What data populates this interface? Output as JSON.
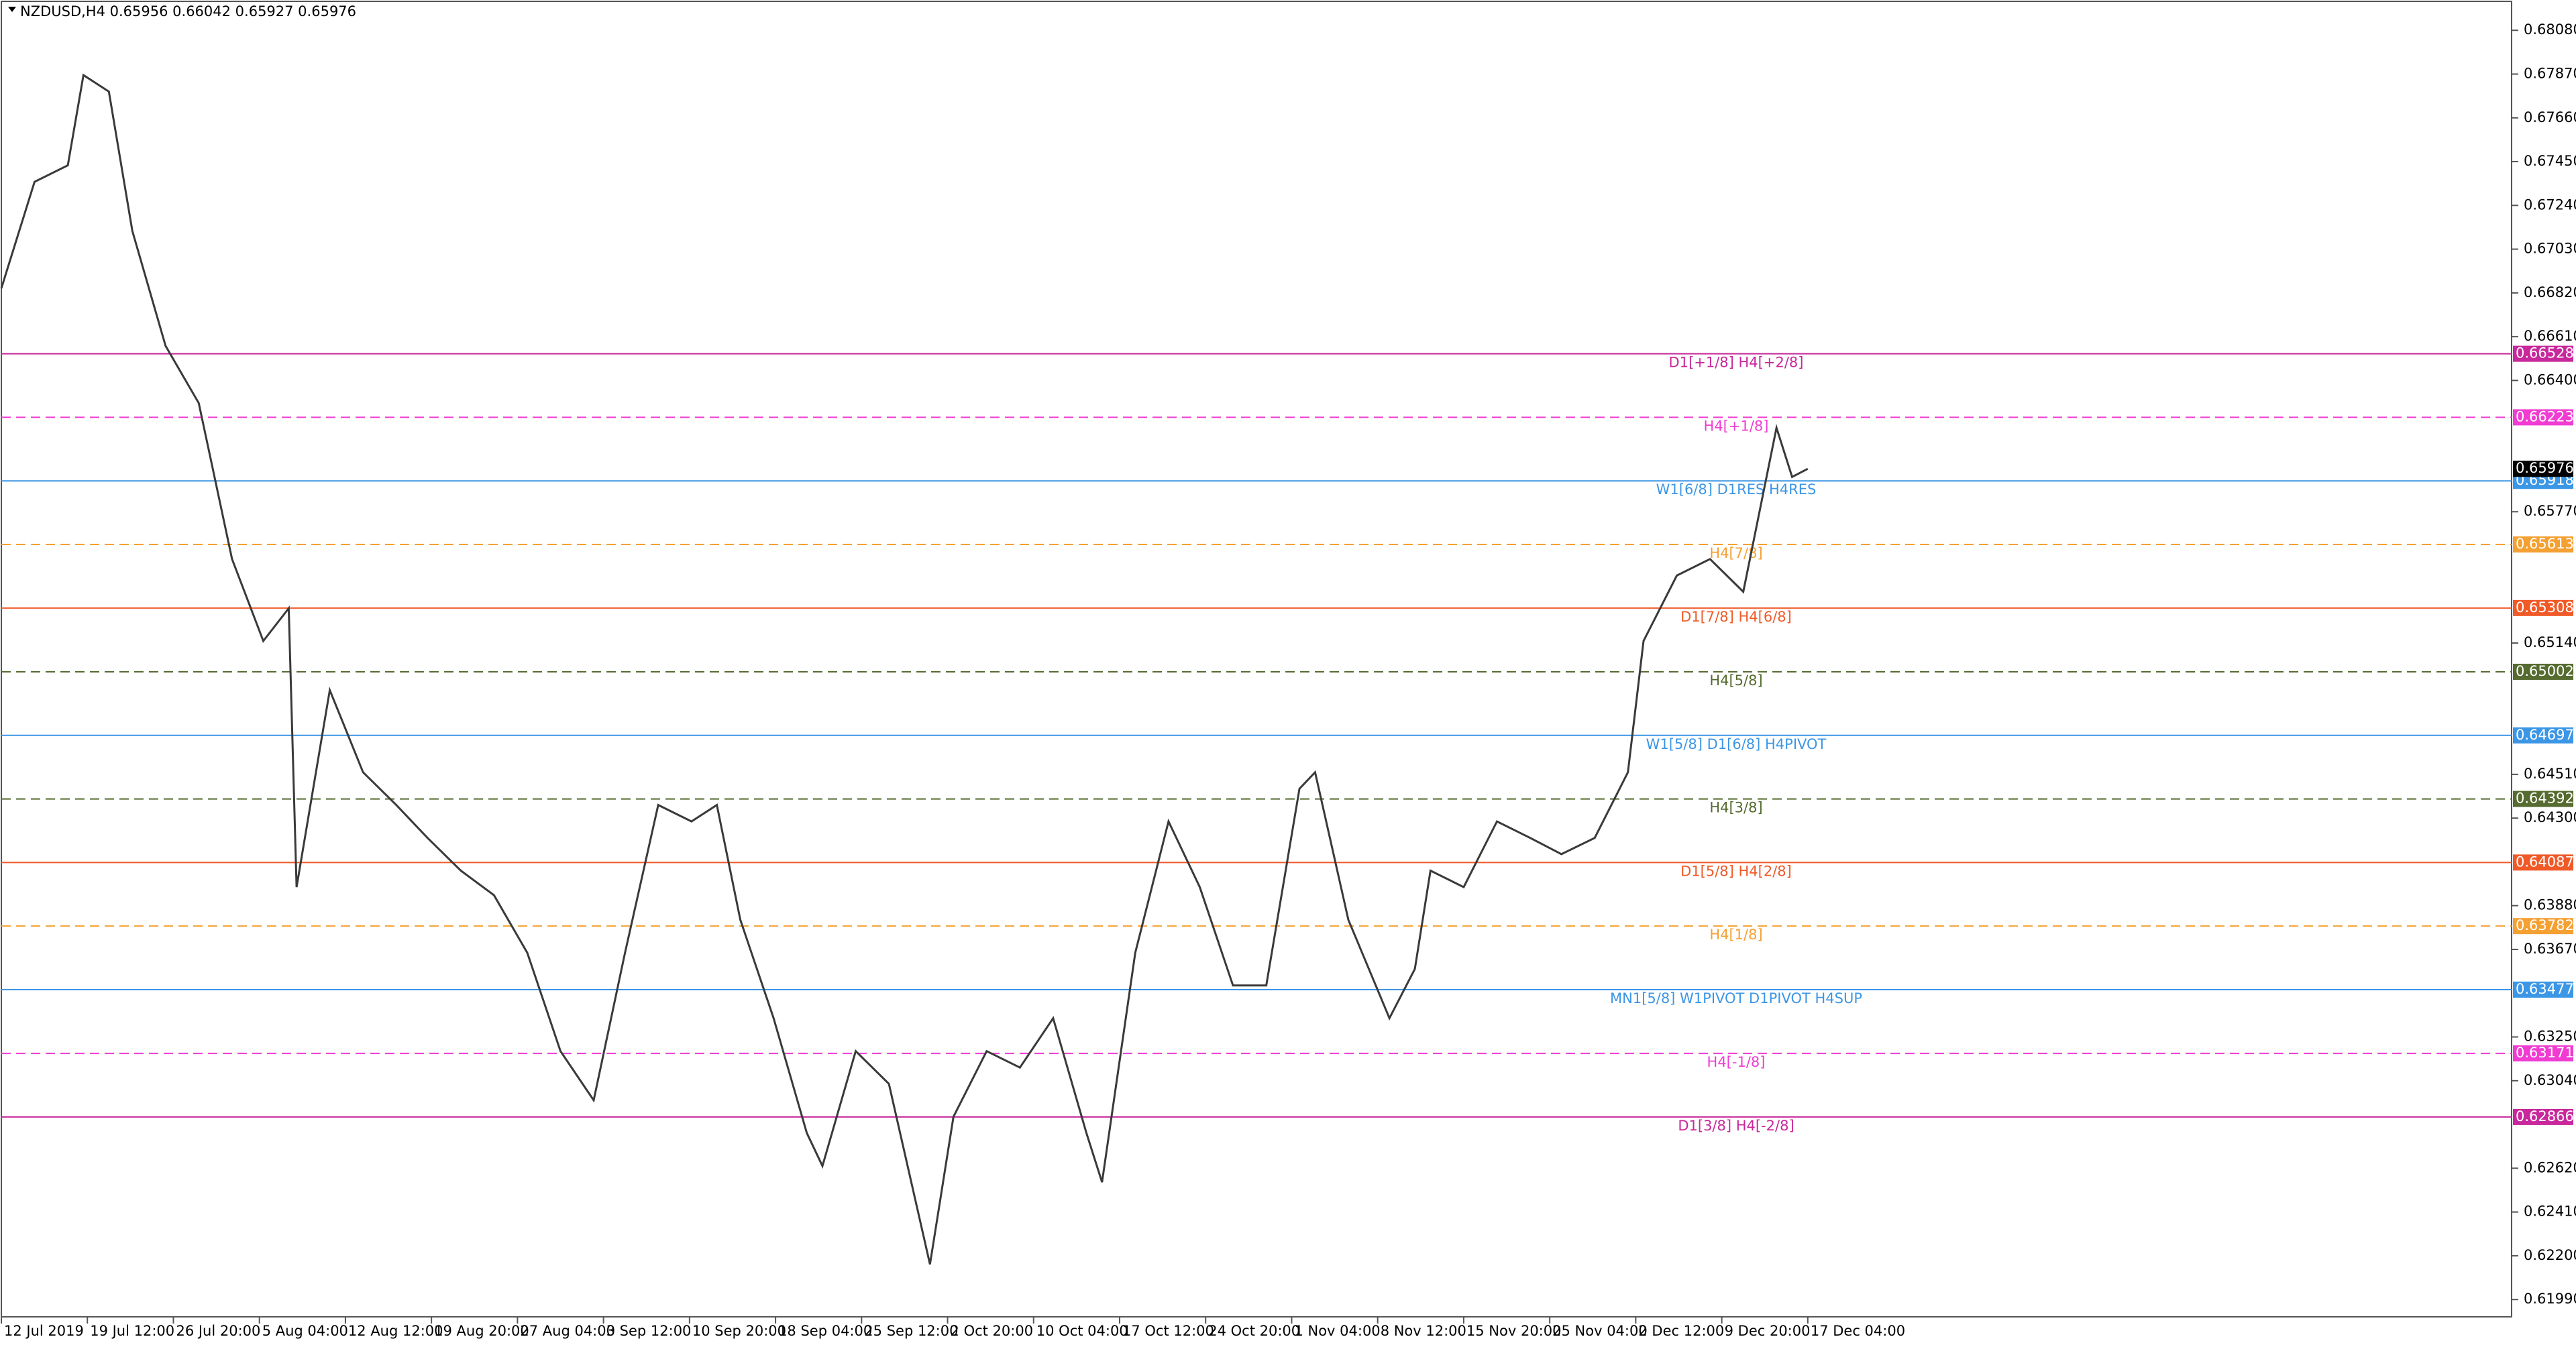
{
  "chart_data": {
    "type": "line",
    "title": "NZDUSD,H4  0.65956 0.66042 0.65927 0.65976",
    "color": "#3a3a3a",
    "xlim": [
      0,
      1284
    ],
    "ylim": [
      0.61907,
      0.68219
    ],
    "x": [
      0,
      17,
      34,
      42,
      55,
      67,
      84,
      101,
      118,
      134,
      147,
      151,
      168,
      185,
      202,
      218,
      235,
      252,
      269,
      286,
      303,
      319,
      336,
      353,
      366,
      378,
      395,
      412,
      420,
      437,
      454,
      475,
      487,
      504,
      521,
      538,
      555,
      563,
      580,
      597,
      613,
      630,
      647,
      664,
      672,
      689,
      710,
      723,
      731,
      748,
      765,
      782,
      798,
      815,
      832,
      840,
      857,
      874,
      891,
      908,
      916,
      924
    ],
    "values": [
      0.66842,
      0.67353,
      0.67432,
      0.67865,
      0.67786,
      0.67117,
      0.66566,
      0.66291,
      0.65543,
      0.6515,
      0.65307,
      0.63969,
      0.64914,
      0.6452,
      0.64363,
      0.64205,
      0.64048,
      0.6393,
      0.63654,
      0.63182,
      0.62946,
      0.63654,
      0.64363,
      0.64284,
      0.64363,
      0.63812,
      0.6334,
      0.62789,
      0.62631,
      0.63182,
      0.63025,
      0.62159,
      0.62867,
      0.63182,
      0.63103,
      0.6334,
      0.62789,
      0.62553,
      0.63654,
      0.64284,
      0.63969,
      0.63497,
      0.63497,
      0.64441,
      0.6452,
      0.63812,
      0.6334,
      0.63576,
      0.64048,
      0.63969,
      0.64284,
      0.64205,
      0.64127,
      0.64205,
      0.6452,
      0.6515,
      0.65464,
      0.65543,
      0.65386,
      0.66173,
      0.65937,
      0.65976
    ],
    "xticks": [
      {
        "value": 0,
        "label": "12 Jul 2019"
      },
      {
        "value": 44,
        "label": "19 Jul 12:00"
      },
      {
        "value": 88,
        "label": "26 Jul 20:00"
      },
      {
        "value": 132,
        "label": "5 Aug 04:00"
      },
      {
        "value": 176,
        "label": "12 Aug 12:00"
      },
      {
        "value": 220,
        "label": "19 Aug 20:00"
      },
      {
        "value": 264,
        "label": "27 Aug 04:00"
      },
      {
        "value": 308,
        "label": "3 Sep 12:00"
      },
      {
        "value": 352,
        "label": "10 Sep 20:00"
      },
      {
        "value": 396,
        "label": "18 Sep 04:00"
      },
      {
        "value": 440,
        "label": "25 Sep 12:00"
      },
      {
        "value": 484,
        "label": "2 Oct 20:00"
      },
      {
        "value": 528,
        "label": "10 Oct 04:00"
      },
      {
        "value": 572,
        "label": "17 Oct 12:00"
      },
      {
        "value": 616,
        "label": "24 Oct 20:00"
      },
      {
        "value": 660,
        "label": "1 Nov 04:00"
      },
      {
        "value": 704,
        "label": "8 Nov 12:00"
      },
      {
        "value": 748,
        "label": "15 Nov 20:00"
      },
      {
        "value": 792,
        "label": "25 Nov 04:00"
      },
      {
        "value": 836,
        "label": "2 Dec 12:00"
      },
      {
        "value": 880,
        "label": "9 Dec 20:00"
      },
      {
        "value": 924,
        "label": "17 Dec 04:00"
      }
    ],
    "yticks": [
      {
        "value": 0.6808,
        "label": "0.68080"
      },
      {
        "value": 0.6787,
        "label": "0.67870"
      },
      {
        "value": 0.6766,
        "label": "0.67660"
      },
      {
        "value": 0.6745,
        "label": "0.67450"
      },
      {
        "value": 0.6724,
        "label": "0.67240"
      },
      {
        "value": 0.6703,
        "label": "0.67030"
      },
      {
        "value": 0.6682,
        "label": "0.66820"
      },
      {
        "value": 0.6661,
        "label": "0.66610"
      },
      {
        "value": 0.664,
        "label": "0.66400"
      },
      {
        "value": 0.6577,
        "label": "0.65770"
      },
      {
        "value": 0.6514,
        "label": "0.65140"
      },
      {
        "value": 0.6451,
        "label": "0.64510"
      },
      {
        "value": 0.643,
        "label": "0.64300"
      },
      {
        "value": 0.6388,
        "label": "0.63880"
      },
      {
        "value": 0.6367,
        "label": "0.63670"
      },
      {
        "value": 0.6325,
        "label": "0.63250"
      },
      {
        "value": 0.6304,
        "label": "0.63040"
      },
      {
        "value": 0.6262,
        "label": "0.62620"
      },
      {
        "value": 0.6241,
        "label": "0.62410"
      },
      {
        "value": 0.622,
        "label": "0.62200"
      },
      {
        "value": 0.6199,
        "label": "0.61990"
      }
    ],
    "current_price": 0.65976,
    "levels": [
      {
        "name": "D1[+1/8] H4[+2/8]",
        "value": 0.66528,
        "color": "#c8289b",
        "style": "solid"
      },
      {
        "name": "H4[+1/8]",
        "value": 0.66223,
        "color": "#f03cd2",
        "style": "dashed"
      },
      {
        "name": "W1[6/8] D1RES H4RES",
        "value": 0.65918,
        "color": "#3c96e6",
        "style": "solid"
      },
      {
        "name": "H4[7/8]",
        "value": 0.65613,
        "color": "#f5a032",
        "style": "dashed"
      },
      {
        "name": "D1[7/8] H4[6/8]",
        "value": 0.65308,
        "color": "#f05a28",
        "style": "solid"
      },
      {
        "name": "H4[5/8]",
        "value": 0.65002,
        "color": "#556b2f",
        "style": "dashed"
      },
      {
        "name": "W1[5/8] D1[6/8] H4PIVOT",
        "value": 0.64697,
        "color": "#3c96e6",
        "style": "solid"
      },
      {
        "name": "H4[3/8]",
        "value": 0.64392,
        "color": "#556b2f",
        "style": "dashed"
      },
      {
        "name": "D1[5/8] H4[2/8]",
        "value": 0.64087,
        "color": "#f05a28",
        "style": "solid"
      },
      {
        "name": "H4[1/8]",
        "value": 0.63782,
        "color": "#f5a032",
        "style": "dashed"
      },
      {
        "name": "MN1[5/8] W1PIVOT D1PIVOT H4SUP",
        "value": 0.63477,
        "color": "#3c96e6",
        "style": "solid"
      },
      {
        "name": "H4[-1/8]",
        "value": 0.63171,
        "color": "#f03cd2",
        "style": "dashed"
      },
      {
        "name": "D1[3/8] H4[-2/8]",
        "value": 0.62866,
        "color": "#c8289b",
        "style": "solid"
      }
    ]
  }
}
